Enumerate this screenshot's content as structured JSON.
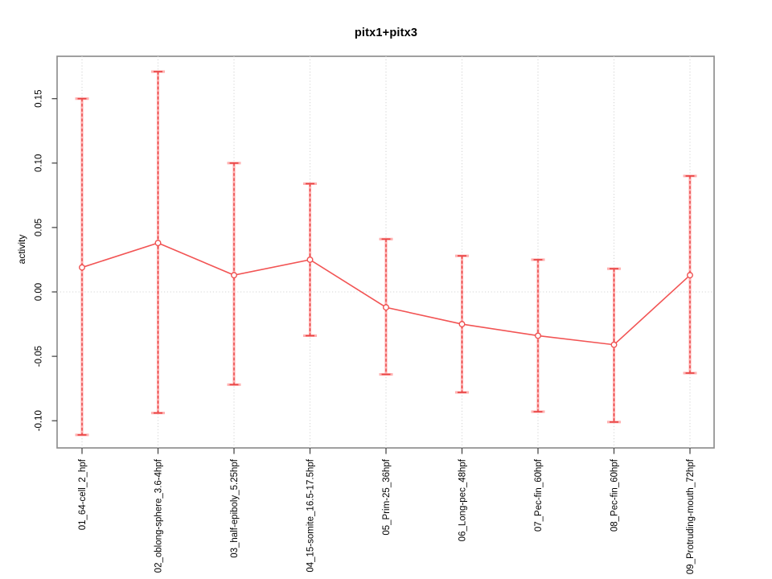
{
  "window": {
    "background": "#ffffff"
  },
  "chart_data": {
    "type": "line",
    "title": "pitx1+pitx3",
    "ylabel": "activity",
    "xlabel": "",
    "legend_position": "none",
    "grid": {
      "horizontal_dotted_at": 0,
      "vertical_dotted_at_each_category": true
    },
    "categories": [
      "01_64-cell_2_hpf",
      "02_oblong-sphere_3.6-4hpf",
      "03_half-epiboly_5.25hpf",
      "04_15-somite_16.5-17.5hpf",
      "05_Prim-25_36hpf",
      "06_Long-pec_48hpf",
      "07_Pec-fin_60hpf",
      "08_Pec-fin_60hpf",
      "09_Protruding-mouth_72hpf"
    ],
    "series": [
      {
        "name": "activity",
        "marker": "open-circle",
        "means": [
          0.019,
          0.038,
          0.013,
          0.025,
          -0.012,
          -0.025,
          -0.034,
          -0.041,
          0.013
        ],
        "upper": [
          0.15,
          0.171,
          0.1,
          0.084,
          0.041,
          0.028,
          0.025,
          0.018,
          0.09
        ],
        "lower": [
          -0.111,
          -0.094,
          -0.072,
          -0.034,
          -0.064,
          -0.078,
          -0.093,
          -0.101,
          -0.063
        ]
      }
    ],
    "y_ticks": {
      "values": [
        0.15,
        0.1,
        0.05,
        0.0,
        -0.05,
        -0.1
      ],
      "labels": [
        "0.15",
        "0.10",
        "0.05",
        "0.00",
        "-0.05",
        "-0.10"
      ]
    },
    "ylim": [
      -0.121,
      0.183
    ],
    "colors": {
      "series_line": "#f25454",
      "errorbar_dark": "#e84444",
      "errorbar_light": "#ffb0b0",
      "marker_stroke": "#ef5252",
      "grid": "#d6d6d6",
      "box": "#8f8f8f",
      "axis_tick": "#3c3c3c",
      "text": "#000000",
      "background": "#ffffff"
    }
  }
}
